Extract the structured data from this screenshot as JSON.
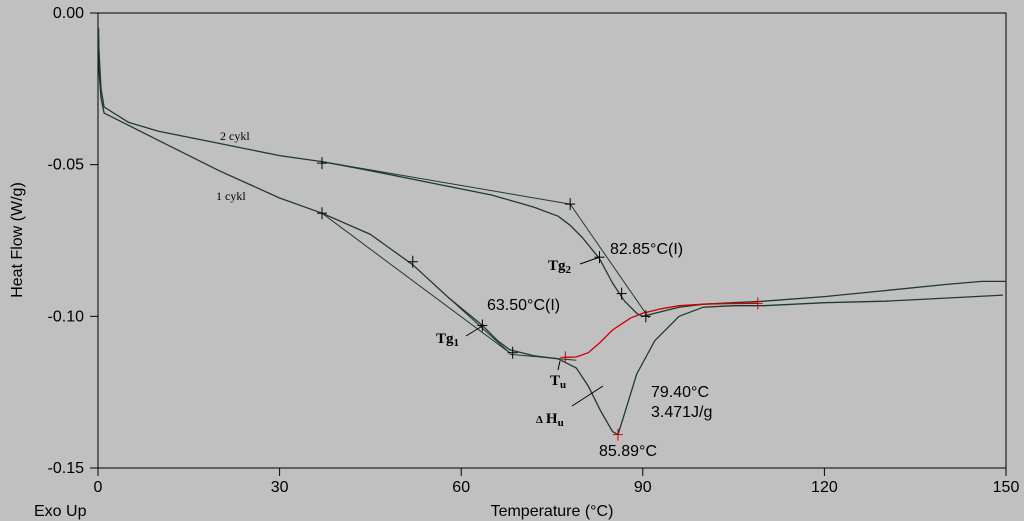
{
  "chart_data": {
    "type": "line",
    "xlabel": "Temperature (°C)",
    "ylabel": "Heat Flow (W/g)",
    "corner_label": "Exo Up",
    "xlim": [
      0,
      150
    ],
    "ylim": [
      -0.15,
      0
    ],
    "xticks": [
      0,
      30,
      60,
      90,
      120,
      150
    ],
    "xtick_labels": [
      "0",
      "30",
      "60",
      "90",
      "120",
      "150"
    ],
    "yticks": [
      0,
      -0.05,
      -0.1,
      -0.15
    ],
    "ytick_labels": [
      "0.00",
      "-0.05",
      "-0.10",
      "-0.15"
    ],
    "grid": false,
    "colors": {
      "curve": "#1f3a2c",
      "baseline": "#cc0000",
      "background": "#c0c0c0",
      "frame": "#000000"
    },
    "series": [
      {
        "name": "1 cykl",
        "x": [
          0.1,
          0.2,
          0.5,
          1,
          5,
          10,
          20,
          30,
          37,
          45,
          52,
          58,
          63.5,
          66,
          68,
          72,
          76,
          79,
          81,
          83,
          85,
          85.9,
          87,
          89,
          92,
          96,
          100,
          105,
          110,
          120,
          130,
          140,
          149.5
        ],
        "y": [
          -0.005,
          -0.02,
          -0.028,
          -0.033,
          -0.037,
          -0.042,
          -0.052,
          -0.061,
          -0.066,
          -0.073,
          -0.083,
          -0.094,
          -0.103,
          -0.108,
          -0.111,
          -0.113,
          -0.114,
          -0.117,
          -0.123,
          -0.131,
          -0.138,
          -0.139,
          -0.132,
          -0.119,
          -0.108,
          -0.1,
          -0.097,
          -0.0965,
          -0.0965,
          -0.0955,
          -0.095,
          -0.094,
          -0.093
        ]
      },
      {
        "name": "2 cykl",
        "x": [
          0.1,
          0.5,
          1,
          5,
          10,
          20,
          30,
          37,
          45,
          55,
          65,
          72,
          76,
          78,
          80,
          82.85,
          85,
          87,
          89,
          90,
          92,
          96,
          100,
          105,
          110,
          120,
          130,
          140,
          146,
          150
        ],
        "y": [
          -0.01,
          -0.025,
          -0.031,
          -0.036,
          -0.039,
          -0.043,
          -0.047,
          -0.049,
          -0.052,
          -0.056,
          -0.06,
          -0.064,
          -0.067,
          -0.07,
          -0.074,
          -0.081,
          -0.089,
          -0.095,
          -0.099,
          -0.1,
          -0.099,
          -0.097,
          -0.096,
          -0.0955,
          -0.095,
          -0.0935,
          -0.0915,
          -0.0895,
          -0.0885,
          -0.0885
        ]
      }
    ],
    "integration_baseline": {
      "x": [
        77,
        79,
        81,
        83,
        85,
        88,
        90,
        93,
        96,
        100,
        104,
        109
      ],
      "y": [
        -0.1135,
        -0.1134,
        -0.112,
        -0.1085,
        -0.1045,
        -0.1005,
        -0.099,
        -0.0975,
        -0.0965,
        -0.096,
        -0.0958,
        -0.0957
      ]
    },
    "tangent_lines": [
      {
        "x": [
          37,
          68
        ],
        "y": [
          -0.066,
          -0.112
        ]
      },
      {
        "x": [
          58,
          68
        ],
        "y": [
          -0.094,
          -0.112
        ]
      },
      {
        "x": [
          68,
          79
        ],
        "y": [
          -0.1125,
          -0.1145
        ]
      },
      {
        "x": [
          37,
          78
        ],
        "y": [
          -0.049,
          -0.063
        ]
      },
      {
        "x": [
          78,
          91
        ],
        "y": [
          -0.063,
          -0.1005
        ]
      }
    ],
    "markers": [
      {
        "x": 37,
        "y": -0.066
      },
      {
        "x": 52,
        "y": -0.082
      },
      {
        "x": 63.5,
        "y": -0.103
      },
      {
        "x": 68.5,
        "y": -0.112
      },
      {
        "x": 37,
        "y": -0.0495
      },
      {
        "x": 78,
        "y": -0.063
      },
      {
        "x": 82.85,
        "y": -0.0805
      },
      {
        "x": 86.5,
        "y": -0.0925
      },
      {
        "x": 90.5,
        "y": -0.1
      }
    ],
    "baseline_markers": [
      {
        "x": 77.2,
        "y": -0.1135
      },
      {
        "x": 85.9,
        "y": -0.139
      },
      {
        "x": 109,
        "y": -0.0957
      }
    ],
    "annotations": {
      "cycle2": "2 cykl",
      "cycle1": "1 cykl",
      "tg2_value": "82.85°C(I)",
      "tg1_value": "63.50°C(I)",
      "tg_symbol": "Tg",
      "tg2_sub": "2",
      "tg1_sub": "1",
      "tu_symbol": "T",
      "tu_sub": "u",
      "dh_delta": "Δ",
      "dh_symbol": "H",
      "dh_sub": "u",
      "onset_temp": "79.40°C",
      "enthalpy": "3.471J/g",
      "peak_temp": "85.89°C"
    }
  }
}
